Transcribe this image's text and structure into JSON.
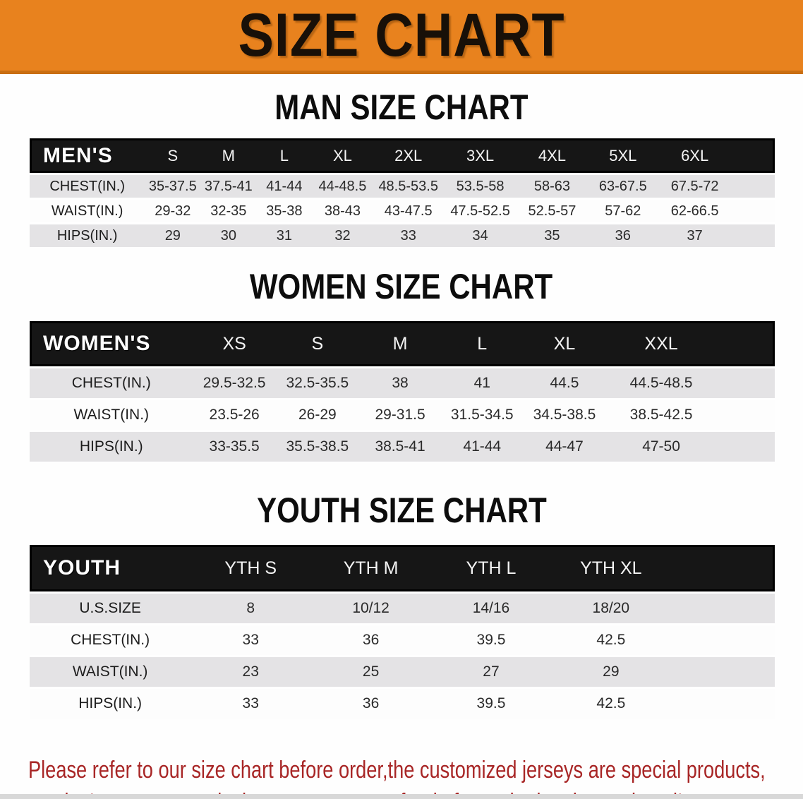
{
  "banner": {
    "title": "SIZE CHART",
    "bg_color": "#E8821E",
    "border_color": "#C96E12"
  },
  "sections": [
    {
      "heading": "MAN SIZE CHART",
      "table_label": "MEN'S",
      "columns": [
        "S",
        "M",
        "L",
        "XL",
        "2XL",
        "3XL",
        "4XL",
        "5XL",
        "6XL"
      ],
      "rows": [
        {
          "label": "CHEST(IN.)",
          "values": [
            "35-37.5",
            "37.5-41",
            "41-44",
            "44-48.5",
            "48.5-53.5",
            "53.5-58",
            "58-63",
            "63-67.5",
            "67.5-72"
          ]
        },
        {
          "label": "WAIST(IN.)",
          "values": [
            "29-32",
            "32-35",
            "35-38",
            "38-43",
            "43-47.5",
            "47.5-52.5",
            "52.5-57",
            "57-62",
            "62-66.5"
          ]
        },
        {
          "label": "HIPS(IN.)",
          "values": [
            "29",
            "30",
            "31",
            "32",
            "33",
            "34",
            "35",
            "36",
            "37"
          ]
        }
      ]
    },
    {
      "heading": "WOMEN SIZE CHART",
      "table_label": "WOMEN'S",
      "columns": [
        "XS",
        "S",
        "M",
        "L",
        "XL",
        "XXL"
      ],
      "rows": [
        {
          "label": "CHEST(IN.)",
          "values": [
            "29.5-32.5",
            "32.5-35.5",
            "38",
            "41",
            "44.5",
            "44.5-48.5"
          ]
        },
        {
          "label": "WAIST(IN.)",
          "values": [
            "23.5-26",
            "26-29",
            "29-31.5",
            "31.5-34.5",
            "34.5-38.5",
            "38.5-42.5"
          ]
        },
        {
          "label": "HIPS(IN.)",
          "values": [
            "33-35.5",
            "35.5-38.5",
            "38.5-41",
            "41-44",
            "44-47",
            "47-50"
          ]
        }
      ]
    },
    {
      "heading": "YOUTH SIZE CHART",
      "table_label": "YOUTH",
      "columns": [
        "YTH S",
        "YTH M",
        "YTH L",
        "YTH XL"
      ],
      "rows": [
        {
          "label": "U.S.SIZE",
          "values": [
            "8",
            "10/12",
            "14/16",
            "18/20"
          ]
        },
        {
          "label": "CHEST(IN.)",
          "values": [
            "33",
            "36",
            "39.5",
            "42.5"
          ]
        },
        {
          "label": "WAIST(IN.)",
          "values": [
            "23",
            "25",
            "27",
            "29"
          ]
        },
        {
          "label": "HIPS(IN.)",
          "values": [
            "33",
            "36",
            "39.5",
            "42.5"
          ]
        }
      ]
    }
  ],
  "footer": {
    "line1": "Please refer to our size chart before order,the customized jerseys are special products,",
    "line2": "we don't accept cancel, change, teturn or refund after order has been placed!",
    "text_color": "#A82626"
  }
}
